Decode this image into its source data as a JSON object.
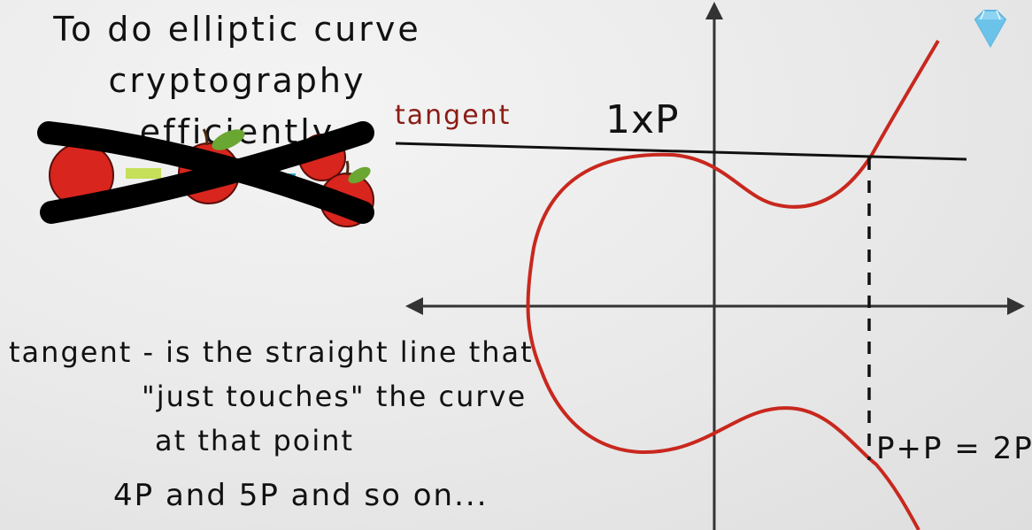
{
  "heading": {
    "line1": "To do elliptic curve",
    "line2": "cryptography efficiently"
  },
  "diagram": {
    "tangent_label": "tangent",
    "point_label": "1xP",
    "result_label": "P+P = 2P",
    "curve_color": "#c8281e",
    "line_color": "#111111",
    "tangent_label_color": "#8a1c14"
  },
  "definition": {
    "line1": "tangent - is the straight line that",
    "line2": "\"just touches\" the curve",
    "line3": "at that point"
  },
  "footer": "4P and 5P and so on...",
  "icons": {
    "crossed_apples": "apples-crossed-out-icon",
    "diamond": "diamond-icon"
  }
}
